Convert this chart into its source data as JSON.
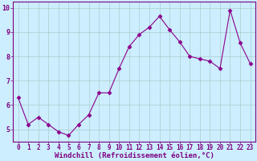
{
  "x": [
    0,
    1,
    2,
    3,
    4,
    5,
    6,
    7,
    8,
    9,
    10,
    11,
    12,
    13,
    14,
    15,
    16,
    17,
    18,
    19,
    20,
    21,
    22,
    23
  ],
  "y": [
    6.3,
    5.2,
    5.5,
    5.2,
    4.9,
    4.75,
    5.2,
    5.6,
    6.5,
    6.5,
    7.5,
    8.4,
    8.9,
    9.2,
    9.65,
    9.1,
    8.6,
    8.0,
    7.9,
    7.8,
    7.5,
    9.9,
    8.55,
    7.7
  ],
  "line_color": "#8B008B",
  "marker": "D",
  "marker_size": 2.5,
  "bg_color": "#cceeff",
  "grid_color": "#aacccc",
  "xlabel": "Windchill (Refroidissement éolien,°C)",
  "ylabel": "",
  "xlim": [
    -0.5,
    23.5
  ],
  "ylim": [
    4.5,
    10.25
  ],
  "yticks": [
    5,
    6,
    7,
    8,
    9,
    10
  ],
  "xticks": [
    0,
    1,
    2,
    3,
    4,
    5,
    6,
    7,
    8,
    9,
    10,
    11,
    12,
    13,
    14,
    15,
    16,
    17,
    18,
    19,
    20,
    21,
    22,
    23
  ],
  "tick_label_color": "#800080",
  "axis_label_color": "#800080",
  "spine_color": "#800080",
  "tick_fontsize": 5.5,
  "xlabel_fontsize": 6.5
}
